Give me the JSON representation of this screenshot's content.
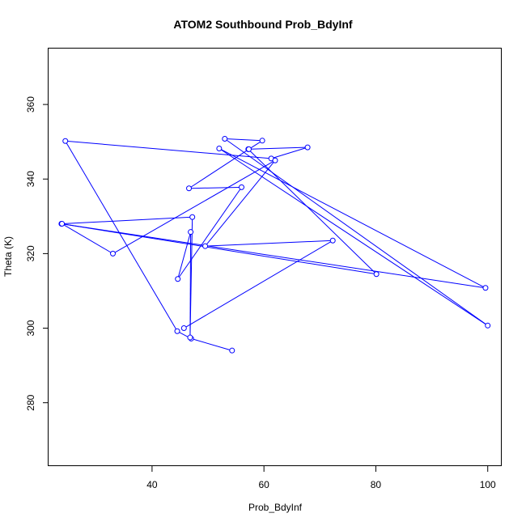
{
  "chart_data": {
    "type": "line",
    "title": "ATOM2 Southbound Prob_BdyInf",
    "xlabel": "Prob_BdyInf",
    "ylabel": "Theta (K)",
    "xlim": [
      21.5,
      102.5
    ],
    "ylim": [
      263,
      375
    ],
    "xticks": [
      40,
      60,
      80,
      100
    ],
    "yticks": [
      280,
      300,
      320,
      340,
      360
    ],
    "grid": false,
    "legend": "none",
    "colors": {
      "series": "#0000ff",
      "frame": "#000000"
    },
    "series": [
      {
        "points": [
          [
            54.3,
            294.0
          ],
          [
            47.0,
            297.2
          ],
          [
            44.5,
            299.2
          ],
          [
            24.5,
            350.2
          ],
          [
            61.3,
            345.5
          ],
          [
            67.8,
            348.5
          ],
          [
            57.2,
            348.0
          ],
          [
            80.1,
            314.5
          ],
          [
            23.8,
            328.0
          ],
          [
            99.6,
            310.8
          ],
          [
            52.0,
            348.2
          ],
          [
            100.0,
            300.7
          ],
          [
            53.0,
            350.8
          ],
          [
            59.7,
            350.3
          ],
          [
            57.3,
            348.0
          ],
          [
            46.6,
            337.5
          ],
          [
            56.0,
            337.8
          ],
          [
            44.6,
            313.2
          ],
          [
            46.9,
            325.8
          ],
          [
            46.8,
            297.5
          ],
          [
            47.2,
            329.8
          ],
          [
            23.9,
            328.0
          ],
          [
            33.0,
            320.0
          ],
          [
            62.0,
            345.0
          ],
          [
            49.5,
            322.0
          ],
          [
            72.3,
            323.5
          ],
          [
            45.7,
            300.0
          ]
        ]
      }
    ]
  }
}
